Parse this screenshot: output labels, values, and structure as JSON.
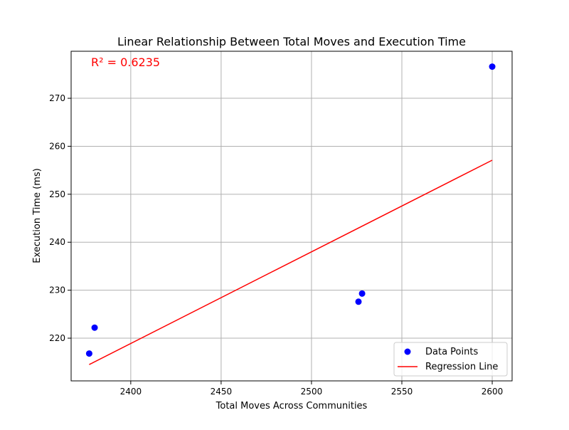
{
  "chart_data": {
    "type": "scatter",
    "title": "Linear Relationship Between Total Moves and Execution Time",
    "xlabel": "Total Moves Across Communities",
    "ylabel": "Execution Time (ms)",
    "xlim": [
      2367,
      2611
    ],
    "ylim": [
      211.1,
      279.8
    ],
    "xticks": [
      2400,
      2450,
      2500,
      2550,
      2600
    ],
    "yticks": [
      220,
      230,
      240,
      250,
      260,
      270
    ],
    "grid": true,
    "legend_position": "lower-right",
    "annotation": "R² = 0.6235",
    "series": [
      {
        "name": "Data Points",
        "kind": "scatter",
        "color": "#0000ff",
        "x": [
          2377,
          2380,
          2526,
          2528,
          2600
        ],
        "y": [
          216.8,
          222.2,
          227.6,
          229.3,
          276.6
        ]
      },
      {
        "name": "Regression Line",
        "kind": "line",
        "color": "#ff0000",
        "x": [
          2377,
          2600
        ],
        "y": [
          214.5,
          257.1
        ]
      }
    ]
  }
}
